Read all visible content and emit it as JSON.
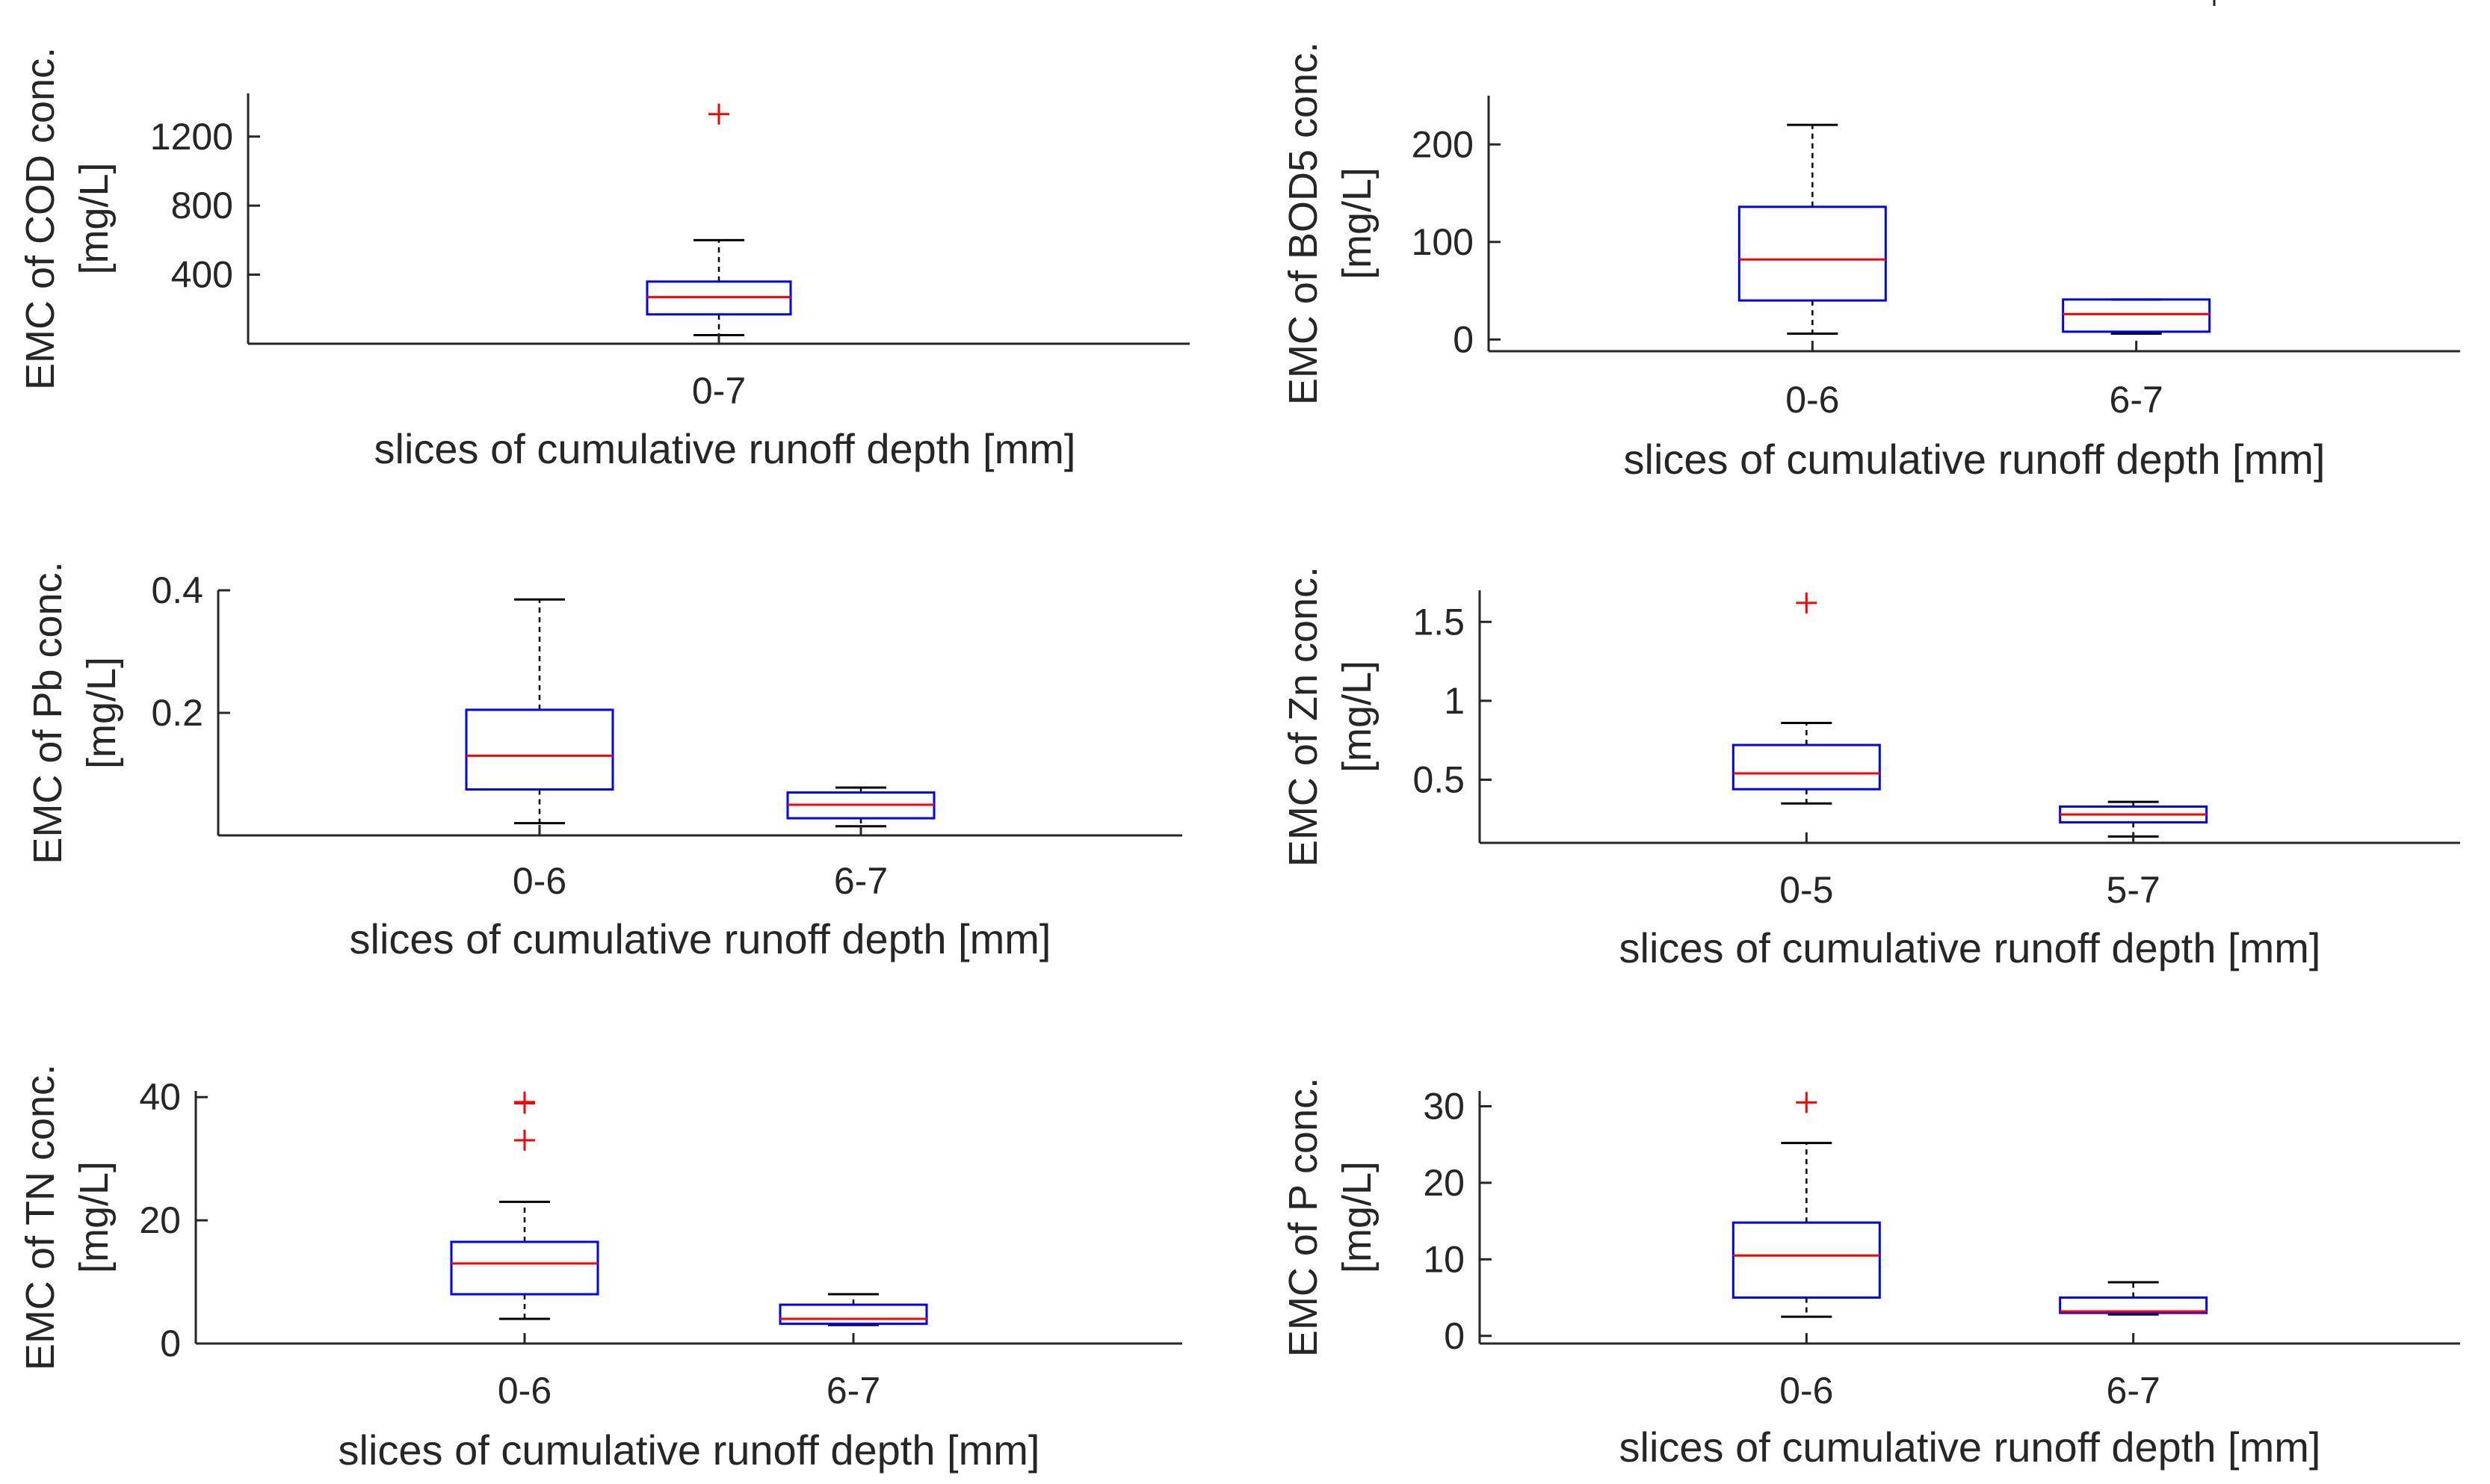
{
  "chart_data": [
    {
      "type": "box",
      "title": "",
      "ylabel_lines": [
        "EMC of COD conc.",
        "[mg/L]"
      ],
      "xlabel": "slices of cumulative runoff depth [mm]",
      "ylim": [
        0,
        1450
      ],
      "yticks": [
        400,
        800,
        1200
      ],
      "grid": false,
      "boxes": [
        {
          "category": "0-7",
          "whisker_low": 50,
          "q1": 170,
          "median": 270,
          "q3": 360,
          "whisker_high": 600,
          "outliers": [
            1330
          ]
        }
      ]
    },
    {
      "type": "box",
      "title": "",
      "ylabel_lines": [
        "EMC of BOD5 conc.",
        "[mg/L]"
      ],
      "xlabel": "slices of cumulative runoff depth [mm]",
      "ylim": [
        -12,
        250
      ],
      "yticks": [
        0,
        100,
        200
      ],
      "grid": false,
      "boxes": [
        {
          "category": "0-6",
          "whisker_low": 6,
          "q1": 40,
          "median": 82,
          "q3": 136,
          "whisker_high": 220,
          "outliers": []
        },
        {
          "category": "6-7",
          "whisker_low": 6,
          "q1": 8,
          "median": 26,
          "q3": 41,
          "whisker_high": 41,
          "outliers": []
        }
      ]
    },
    {
      "type": "box",
      "title": "",
      "ylabel_lines": [
        "EMC of Pb conc.",
        "[mg/L]"
      ],
      "xlabel": "slices of cumulative runoff depth [mm]",
      "ylim": [
        0,
        0.4
      ],
      "yticks": [
        0.2,
        0.4
      ],
      "grid": false,
      "boxes": [
        {
          "category": "0-6",
          "whisker_low": 0.02,
          "q1": 0.075,
          "median": 0.13,
          "q3": 0.205,
          "whisker_high": 0.385,
          "outliers": []
        },
        {
          "category": "6-7",
          "whisker_low": 0.015,
          "q1": 0.028,
          "median": 0.05,
          "q3": 0.07,
          "whisker_high": 0.078,
          "outliers": []
        }
      ]
    },
    {
      "type": "box",
      "title": "",
      "ylabel_lines": [
        "EMC of Zn conc.",
        "[mg/L]"
      ],
      "xlabel": "slices of cumulative runoff depth [mm]",
      "ylim": [
        0.1,
        1.7
      ],
      "yticks": [
        0.5,
        1,
        1.5
      ],
      "grid": false,
      "boxes": [
        {
          "category": "0-5",
          "whisker_low": 0.35,
          "q1": 0.44,
          "median": 0.54,
          "q3": 0.72,
          "whisker_high": 0.86,
          "outliers": [
            1.62
          ]
        },
        {
          "category": "5-7",
          "whisker_low": 0.14,
          "q1": 0.23,
          "median": 0.28,
          "q3": 0.33,
          "whisker_high": 0.36,
          "outliers": []
        }
      ]
    },
    {
      "type": "box",
      "title": "",
      "ylabel_lines": [
        "EMC of TN conc.",
        "[mg/L]"
      ],
      "xlabel": "slices of cumulative runoff depth [mm]",
      "ylim": [
        0,
        41
      ],
      "yticks": [
        0,
        20,
        40
      ],
      "grid": false,
      "boxes": [
        {
          "category": "0-6",
          "whisker_low": 4,
          "q1": 8,
          "median": 13,
          "q3": 16.5,
          "whisker_high": 23,
          "outliers": [
            33,
            39,
            39.2
          ]
        },
        {
          "category": "6-7",
          "whisker_low": 3,
          "q1": 3.2,
          "median": 4,
          "q3": 6.3,
          "whisker_high": 8,
          "outliers": []
        }
      ]
    },
    {
      "type": "box",
      "title": "",
      "ylabel_lines": [
        "EMC of P conc.",
        "[mg/L]"
      ],
      "xlabel": "slices of cumulative runoff depth [mm]",
      "ylim": [
        -1,
        32
      ],
      "yticks": [
        0,
        10,
        20,
        30
      ],
      "grid": false,
      "boxes": [
        {
          "category": "0-6",
          "whisker_low": 2.5,
          "q1": 5,
          "median": 10.5,
          "q3": 14.8,
          "whisker_high": 25.2,
          "outliers": [
            30.5
          ]
        },
        {
          "category": "6-7",
          "whisker_low": 2.8,
          "q1": 3,
          "median": 3.2,
          "q3": 5,
          "whisker_high": 7,
          "outliers": []
        }
      ]
    }
  ],
  "colors": {
    "box": "#0000ff",
    "median": "#ff0000",
    "whisker": "#000000",
    "outlier": "#ff0000",
    "axis": "#262626"
  }
}
